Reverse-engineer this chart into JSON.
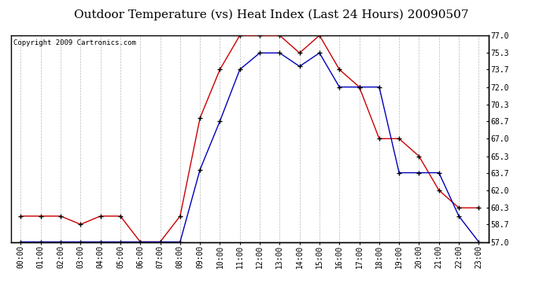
{
  "title": "Outdoor Temperature (vs) Heat Index (Last 24 Hours) 20090507",
  "copyright": "Copyright 2009 Cartronics.com",
  "hours": [
    "00:00",
    "01:00",
    "02:00",
    "03:00",
    "04:00",
    "05:00",
    "06:00",
    "07:00",
    "08:00",
    "09:00",
    "10:00",
    "11:00",
    "12:00",
    "13:00",
    "14:00",
    "15:00",
    "16:00",
    "17:00",
    "18:00",
    "19:00",
    "20:00",
    "21:00",
    "22:00",
    "23:00"
  ],
  "temp": [
    57.0,
    57.0,
    57.0,
    57.0,
    57.0,
    57.0,
    57.0,
    57.0,
    57.0,
    64.0,
    68.7,
    73.7,
    75.3,
    75.3,
    74.0,
    75.3,
    72.0,
    72.0,
    72.0,
    63.7,
    63.7,
    63.7,
    59.5,
    57.0
  ],
  "heat_index": [
    59.5,
    59.5,
    59.5,
    58.7,
    59.5,
    59.5,
    57.0,
    57.0,
    59.5,
    69.0,
    73.7,
    77.0,
    77.0,
    77.0,
    75.3,
    77.0,
    73.7,
    72.0,
    67.0,
    67.0,
    65.3,
    62.0,
    60.3,
    60.3
  ],
  "ylim": [
    57.0,
    77.0
  ],
  "yticks": [
    57.0,
    58.7,
    60.3,
    62.0,
    63.7,
    65.3,
    67.0,
    68.7,
    70.3,
    72.0,
    73.7,
    75.3,
    77.0
  ],
  "temp_color": "#0000bb",
  "heat_color": "#cc0000",
  "bg_color": "#ffffff",
  "grid_color": "#bbbbbb",
  "title_fontsize": 11,
  "tick_fontsize": 7,
  "copyright_fontsize": 6.5
}
